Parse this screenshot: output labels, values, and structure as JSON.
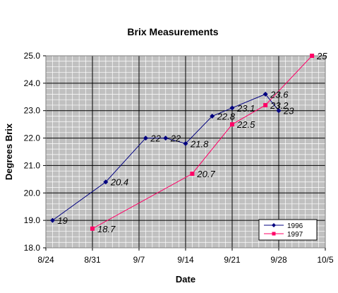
{
  "chart_data": {
    "type": "line",
    "title": "Brix Measurements",
    "xlabel": "Date",
    "ylabel": "Degrees Brix",
    "x_tick_labels": [
      "8/24",
      "8/31",
      "9/7",
      "9/14",
      "9/21",
      "9/28",
      "10/5"
    ],
    "y_tick_labels": [
      "18.0",
      "19.0",
      "20.0",
      "21.0",
      "22.0",
      "23.0",
      "24.0",
      "25.0"
    ],
    "x_axis": {
      "start": "8/24",
      "end": "10/5",
      "unit": "date"
    },
    "ylim": [
      18.0,
      25.0
    ],
    "grid": true,
    "legend_position": "bottom-right",
    "series": [
      {
        "name": "1996",
        "color": "#000080",
        "marker": "diamond",
        "points": [
          {
            "x": "8/25",
            "y": 19.0,
            "label": "19"
          },
          {
            "x": "9/2",
            "y": 20.4,
            "label": "20.4"
          },
          {
            "x": "9/8",
            "y": 22.0,
            "label": "22"
          },
          {
            "x": "9/11",
            "y": 22.0,
            "label": "22"
          },
          {
            "x": "9/14",
            "y": 21.8,
            "label": "21.8"
          },
          {
            "x": "9/18",
            "y": 22.8,
            "label": "22.8"
          },
          {
            "x": "9/21",
            "y": 23.1,
            "label": "23.1"
          },
          {
            "x": "9/26",
            "y": 23.6,
            "label": "23.6"
          },
          {
            "x": "9/28",
            "y": 23.0,
            "label": "23"
          }
        ]
      },
      {
        "name": "1997",
        "color": "#ff0066",
        "marker": "square",
        "points": [
          {
            "x": "8/31",
            "y": 18.7,
            "label": "18.7"
          },
          {
            "x": "9/15",
            "y": 20.7,
            "label": "20.7"
          },
          {
            "x": "9/21",
            "y": 22.5,
            "label": "22.5"
          },
          {
            "x": "9/26",
            "y": 23.2,
            "label": "23.2"
          },
          {
            "x": "10/3",
            "y": 25.0,
            "label": "25"
          }
        ]
      }
    ]
  },
  "colors": {
    "plot_background": "#c0c0c0",
    "major_grid": "#000000",
    "minor_grid": "#ffffff"
  }
}
